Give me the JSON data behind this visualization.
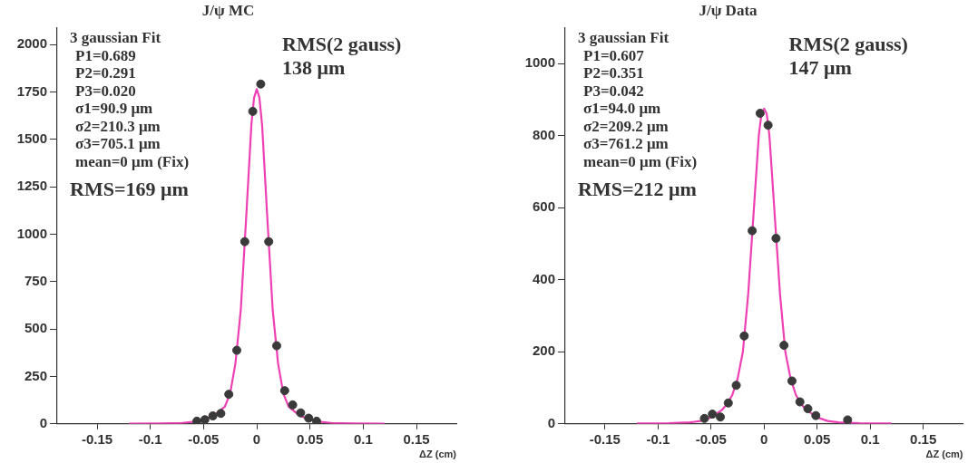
{
  "chart_data": [
    {
      "type": "scatter",
      "title": "J/ψ MC",
      "xlabel": "ΔZ (cm)",
      "xlim": [
        -0.1875,
        0.1875
      ],
      "xticks": [
        -0.15,
        -0.1,
        -0.05,
        0,
        0.05,
        0.1,
        0.15
      ],
      "ylim": [
        0,
        2090
      ],
      "yticks": [
        0,
        250,
        500,
        750,
        1000,
        1250,
        1500,
        1750,
        2000
      ],
      "grid": false,
      "legend": false,
      "annotations": [
        "3 gaussian Fit",
        "P1=0.689",
        "P2=0.291",
        "P3=0.020",
        "σ1=90.9 μm",
        "σ2=210.3 μm",
        "σ3=705.1 μm",
        "mean=0 μm (Fix)",
        "RMS=169 μm",
        "RMS(2 gauss)",
        "138 μm"
      ],
      "series": [
        {
          "marker": "circle",
          "color": "#3a3a3a",
          "x": [
            -0.05625,
            -0.04875,
            -0.04125,
            -0.03375,
            -0.02625,
            -0.01875,
            -0.01125,
            -0.00375,
            0.00375,
            0.01125,
            0.01875,
            0.02625,
            0.03375,
            0.04125,
            0.04875,
            0.05625
          ],
          "values": [
            14,
            22,
            42,
            55,
            156,
            388,
            961,
            1648,
            1792,
            961,
            412,
            175,
            100,
            58,
            30,
            14
          ]
        },
        {
          "type": "line",
          "marker": "none",
          "color": "#ee3fb4",
          "x": [
            -0.12,
            -0.09,
            -0.07,
            -0.06,
            -0.05,
            -0.04,
            -0.03,
            -0.025,
            -0.02,
            -0.015,
            -0.01,
            -0.005,
            -0.0025,
            0,
            0.0025,
            0.005,
            0.01,
            0.015,
            0.02,
            0.025,
            0.03,
            0.04,
            0.05,
            0.06,
            0.07,
            0.09,
            0.12
          ],
          "values": [
            1,
            2,
            5,
            10,
            22,
            45,
            90,
            160,
            320,
            600,
            1080,
            1580,
            1720,
            1765,
            1720,
            1580,
            1080,
            600,
            320,
            160,
            90,
            45,
            22,
            10,
            5,
            2,
            1
          ]
        }
      ]
    },
    {
      "type": "scatter",
      "title": "J/ψ Data",
      "xlabel": "ΔZ (cm)",
      "xlim": [
        -0.1875,
        0.1875
      ],
      "xticks": [
        -0.15,
        -0.1,
        -0.05,
        0,
        0.05,
        0.1,
        0.15
      ],
      "ylim": [
        0,
        1100
      ],
      "yticks": [
        0,
        200,
        400,
        600,
        800,
        1000
      ],
      "grid": false,
      "legend": false,
      "annotations": [
        "3 gaussian Fit",
        "P1=0.607",
        "P2=0.351",
        "P3=0.042",
        "σ1=94.0 μm",
        "σ2=209.2 μm",
        "σ3=761.2 μm",
        "mean=0 μm (Fix)",
        "RMS=212 μm",
        "RMS(2 gauss)",
        "147 μm"
      ],
      "series": [
        {
          "marker": "circle",
          "color": "#3a3a3a",
          "x": [
            -0.05625,
            -0.04875,
            -0.04125,
            -0.03375,
            -0.02625,
            -0.01875,
            -0.01125,
            -0.00375,
            0.00375,
            0.01125,
            0.01875,
            0.02625,
            0.03375,
            0.04125,
            0.04875,
            0.07875
          ],
          "values": [
            15,
            27,
            19,
            58,
            107,
            244,
            536,
            862,
            829,
            515,
            218,
            119,
            61,
            42,
            23,
            11
          ]
        },
        {
          "type": "line",
          "marker": "none",
          "color": "#ee3fb4",
          "x": [
            -0.12,
            -0.09,
            -0.07,
            -0.06,
            -0.05,
            -0.04,
            -0.035,
            -0.03,
            -0.025,
            -0.02,
            -0.015,
            -0.01,
            -0.005,
            -0.0025,
            0,
            0.0025,
            0.005,
            0.01,
            0.015,
            0.02,
            0.025,
            0.03,
            0.035,
            0.04,
            0.05,
            0.06,
            0.07,
            0.09,
            0.12
          ],
          "values": [
            1,
            2,
            4,
            8,
            18,
            38,
            55,
            80,
            125,
            200,
            360,
            580,
            800,
            860,
            875,
            860,
            800,
            580,
            360,
            200,
            125,
            80,
            55,
            38,
            18,
            8,
            4,
            2,
            1
          ]
        }
      ]
    }
  ]
}
